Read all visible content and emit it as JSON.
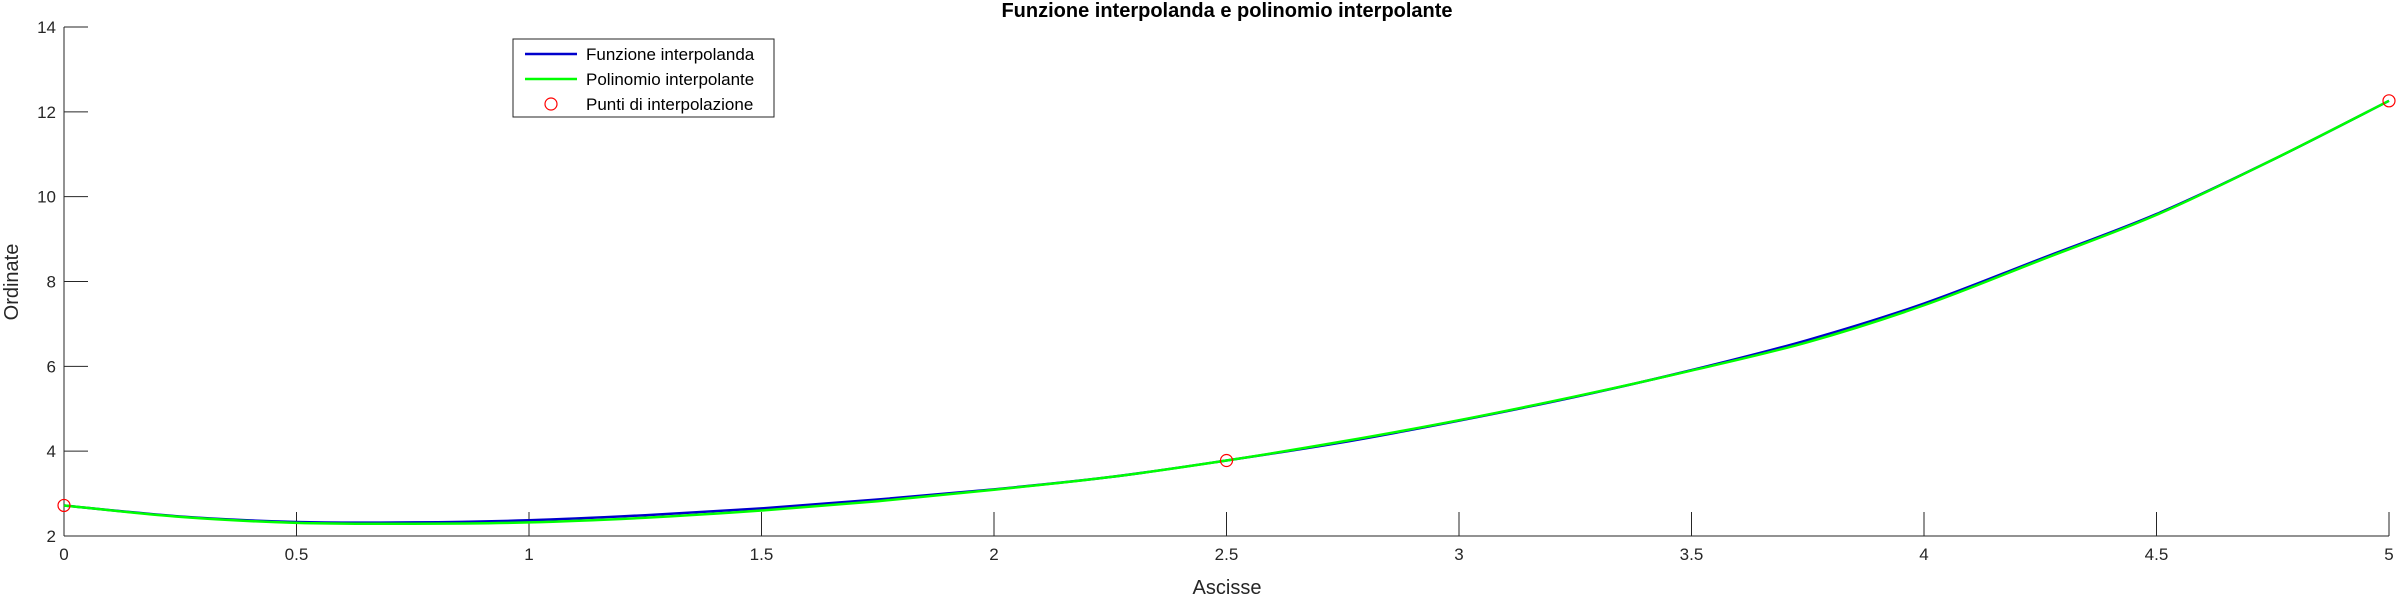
{
  "chart_data": {
    "type": "line",
    "title": "Funzione interpolanda e polinomio interpolante",
    "xlabel": "Ascisse",
    "ylabel": "Ordinate",
    "xlim": [
      0,
      5
    ],
    "ylim": [
      2,
      14
    ],
    "xticks": [
      0,
      0.5,
      1,
      1.5,
      2,
      2.5,
      3,
      3.5,
      4,
      4.5,
      5
    ],
    "xtick_labels": [
      "0",
      "0.5",
      "1",
      "1.5",
      "2",
      "2.5",
      "3",
      "3.5",
      "4",
      "4.5",
      "5"
    ],
    "yticks": [
      2,
      4,
      6,
      8,
      10,
      12,
      14
    ],
    "ytick_labels": [
      "2",
      "4",
      "6",
      "8",
      "10",
      "12",
      "14"
    ],
    "grid": false,
    "legend_position": "top-left",
    "series": [
      {
        "name": "Funzione interpolanda",
        "color": "#0000cc",
        "style": "line",
        "x": [
          0,
          0.25,
          0.5,
          0.75,
          1,
          1.25,
          1.5,
          1.75,
          2,
          2.25,
          2.5,
          2.75,
          3,
          3.25,
          3.5,
          3.75,
          4,
          4.25,
          4.5,
          4.75,
          5
        ],
        "y": [
          2.72,
          2.46,
          2.33,
          2.32,
          2.37,
          2.49,
          2.65,
          2.86,
          3.1,
          3.39,
          3.78,
          4.21,
          4.72,
          5.28,
          5.91,
          6.62,
          7.48,
          8.53,
          9.59,
          10.87,
          12.26
        ]
      },
      {
        "name": "Polinomio interpolante",
        "color": "#00ff00",
        "style": "line",
        "x": [
          0,
          0.25,
          0.5,
          0.75,
          1,
          1.25,
          1.5,
          1.75,
          2,
          2.25,
          2.5,
          2.75,
          3,
          3.25,
          3.5,
          3.75,
          4,
          4.25,
          4.5,
          4.75,
          5
        ],
        "y": [
          2.72,
          2.45,
          2.31,
          2.29,
          2.32,
          2.43,
          2.6,
          2.82,
          3.09,
          3.39,
          3.78,
          4.23,
          4.73,
          5.29,
          5.9,
          6.57,
          7.44,
          8.5,
          9.57,
          10.87,
          12.26
        ]
      },
      {
        "name": "Punti di interpolazione",
        "color": "#ff0000",
        "style": "markers",
        "x": [
          0,
          2.5,
          5
        ],
        "y": [
          2.72,
          3.78,
          12.26
        ]
      }
    ]
  }
}
